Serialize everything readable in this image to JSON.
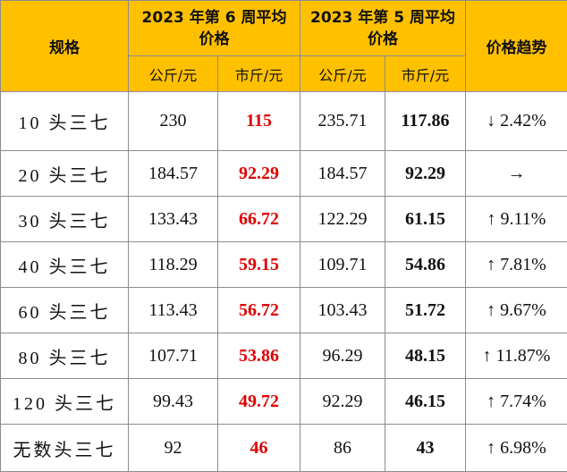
{
  "header": {
    "spec": "规格",
    "week6": [
      "2023 年第 6 周平均",
      "价格"
    ],
    "week5": [
      "2023 年第 5 周平均",
      "价格"
    ],
    "trend": "价格趋势",
    "units": [
      "公斤/元",
      "市斤/元",
      "公斤/元",
      "市斤/元"
    ]
  },
  "table": {
    "rows": [
      [
        "10 头三七",
        230,
        115,
        235.71,
        117.86,
        "↓ 2.42%"
      ],
      [
        "20 头三七",
        184.57,
        92.29,
        184.57,
        92.29,
        "→"
      ],
      [
        "30 头三七",
        133.43,
        66.72,
        122.29,
        61.15,
        "↑ 9.11%"
      ],
      [
        "40 头三七",
        118.29,
        59.15,
        109.71,
        54.86,
        "↑ 7.81%"
      ],
      [
        "60 头三七",
        113.43,
        56.72,
        103.43,
        51.72,
        "↑ 9.67%"
      ],
      [
        "80 头三七",
        107.71,
        53.86,
        96.29,
        48.15,
        "↑ 11.87%"
      ],
      [
        "120 头三七",
        99.43,
        49.72,
        92.29,
        46.15,
        "↑ 7.74%"
      ],
      [
        "无数头三七",
        92,
        46,
        86,
        43,
        "↑ 6.98%"
      ]
    ]
  }
}
